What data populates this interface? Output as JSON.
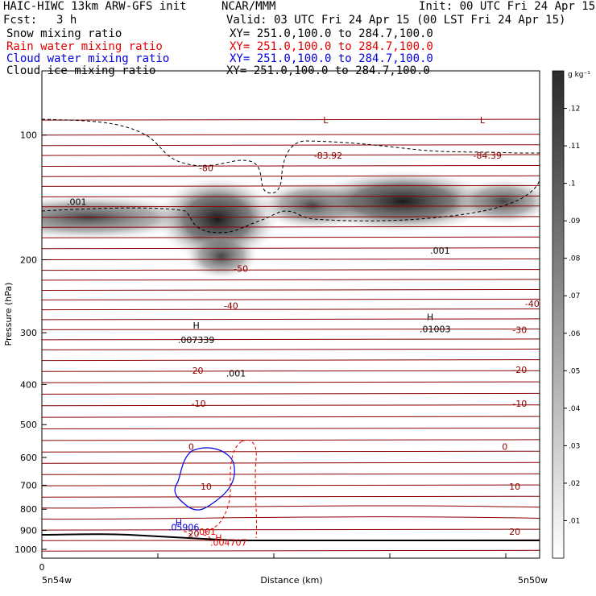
{
  "header": {
    "title_left": "HAIC-HIWC 13km ARW-GFS init",
    "org": "NCAR/MMM",
    "init": "Init: 00 UTC Fri 24 Apr 15",
    "fcst_label": "Fcst:",
    "fcst_value": "3 h",
    "valid": "Valid: 03 UTC Fri 24 Apr 15 (00 LST Fri 24 Apr 15)",
    "xsection": "XY= 251.0,100.0 to 284.7,100.0"
  },
  "fields": [
    {
      "name": "Snow mixing ratio",
      "color": "#000000"
    },
    {
      "name": "Rain water mixing ratio",
      "color": "#e00000"
    },
    {
      "name": "Cloud water mixing ratio",
      "color": "#0000e0"
    },
    {
      "name": "Cloud ice mixing ratio",
      "color": "#000000"
    }
  ],
  "chart_data": {
    "type": "heatmap",
    "ylabel": "Pressure (hPa)",
    "xlabel": "Distance (km)",
    "y_scale": "log",
    "y_ticks": [
      100,
      200,
      300,
      400,
      500,
      600,
      700,
      800,
      900,
      1000
    ],
    "ylim": [
      1050,
      70
    ],
    "x_tick_label": "0",
    "x_left_label": "5n54w",
    "x_right_label": "5n50w",
    "colorbar": {
      "unit": "g kg⁻¹",
      "ticks": [
        ".01",
        ".02",
        ".03",
        ".04",
        ".05",
        ".06",
        ".07",
        ".08",
        ".09",
        ".1",
        ".11",
        ".12"
      ],
      "range": [
        0,
        0.13
      ]
    },
    "temperature_contours": {
      "color": "#8b0000",
      "labels": [
        {
          "text": "-80",
          "x": 0.33,
          "p": 120
        },
        {
          "text": "-50",
          "x": 0.4,
          "p": 210
        },
        {
          "text": "-40",
          "x": 0.38,
          "p": 258
        },
        {
          "text": "-40",
          "x": 0.985,
          "p": 255
        },
        {
          "text": "-30",
          "x": 0.96,
          "p": 295
        },
        {
          "text": "-20",
          "x": 0.31,
          "p": 370
        },
        {
          "text": "-20",
          "x": 0.96,
          "p": 368
        },
        {
          "text": "-10",
          "x": 0.315,
          "p": 445
        },
        {
          "text": "-10",
          "x": 0.96,
          "p": 445
        },
        {
          "text": "0",
          "x": 0.3,
          "p": 565
        },
        {
          "text": "0",
          "x": 0.93,
          "p": 565
        },
        {
          "text": "10",
          "x": 0.33,
          "p": 705
        },
        {
          "text": "10",
          "x": 0.95,
          "p": 705
        },
        {
          "text": "20",
          "x": 0.305,
          "p": 915
        },
        {
          "text": "20",
          "x": 0.95,
          "p": 905
        }
      ]
    },
    "annotations": [
      {
        "text": "L",
        "x": 0.57,
        "p": 92,
        "color": "#8b0000"
      },
      {
        "text": "-83.92",
        "x": 0.575,
        "p": 112,
        "color": "#8b0000"
      },
      {
        "text": "L",
        "x": 0.885,
        "p": 92,
        "color": "#8b0000"
      },
      {
        "text": "-84.39",
        "x": 0.895,
        "p": 112,
        "color": "#8b0000"
      },
      {
        "text": ".001",
        "x": 0.07,
        "p": 145,
        "color": "#000000"
      },
      {
        "text": ".001",
        "x": 0.8,
        "p": 190,
        "color": "#000000"
      },
      {
        "text": "H",
        "x": 0.31,
        "p": 288,
        "color": "#000000"
      },
      {
        "text": ".007339",
        "x": 0.31,
        "p": 312,
        "color": "#000000"
      },
      {
        "text": "H",
        "x": 0.78,
        "p": 275,
        "color": "#000000"
      },
      {
        "text": ".01003",
        "x": 0.79,
        "p": 294,
        "color": "#000000"
      },
      {
        "text": ".001",
        "x": 0.39,
        "p": 376,
        "color": "#000000"
      },
      {
        "text": "H",
        "x": 0.275,
        "p": 860,
        "color": "#0000e0"
      },
      {
        "text": ".05906",
        "x": 0.285,
        "p": 883,
        "color": "#0000e0"
      },
      {
        "text": ".001",
        "x": 0.33,
        "p": 905,
        "color": "#e00000"
      },
      {
        "text": "H",
        "x": 0.355,
        "p": 937,
        "color": "#e00000"
      },
      {
        "text": ".004707",
        "x": 0.375,
        "p": 962,
        "color": "#e00000"
      }
    ]
  }
}
